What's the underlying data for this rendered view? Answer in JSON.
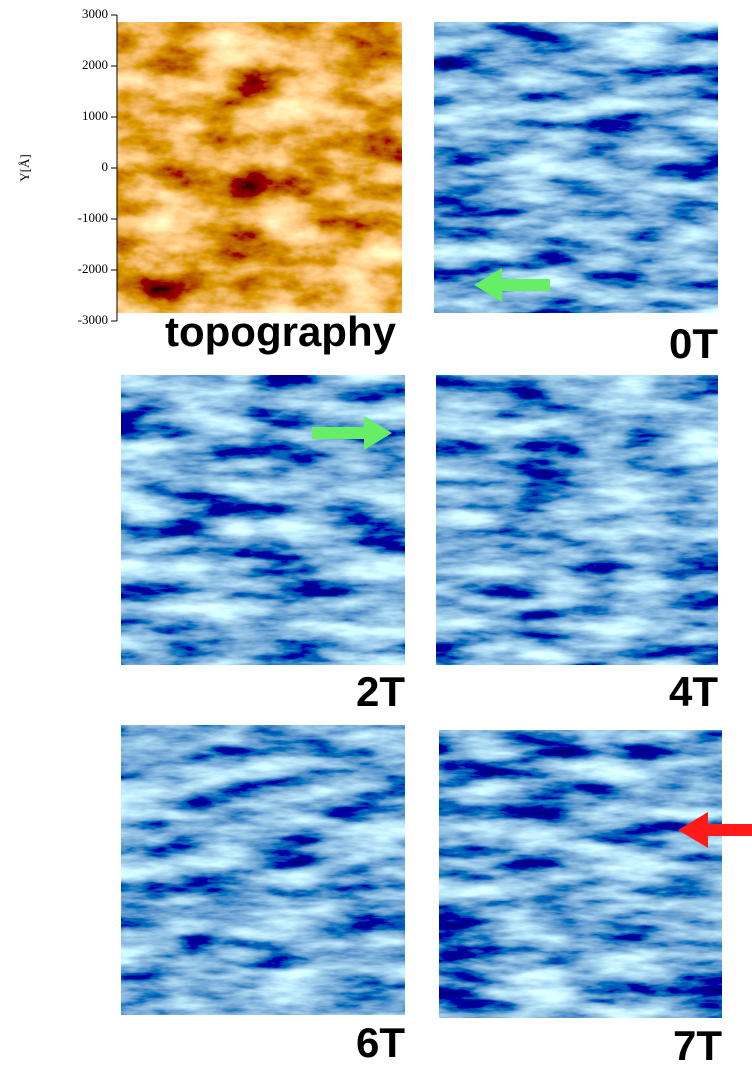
{
  "axis": {
    "label": "Y[Å]",
    "ylim": [
      -3000,
      3000
    ],
    "yticks": [
      3000,
      2000,
      1000,
      0,
      -1000,
      -2000,
      -3000
    ]
  },
  "panels": [
    {
      "label": "topography"
    },
    {
      "label": "0T"
    },
    {
      "label": "2T"
    },
    {
      "label": "4T"
    },
    {
      "label": "6T"
    },
    {
      "label": "7T"
    }
  ]
}
